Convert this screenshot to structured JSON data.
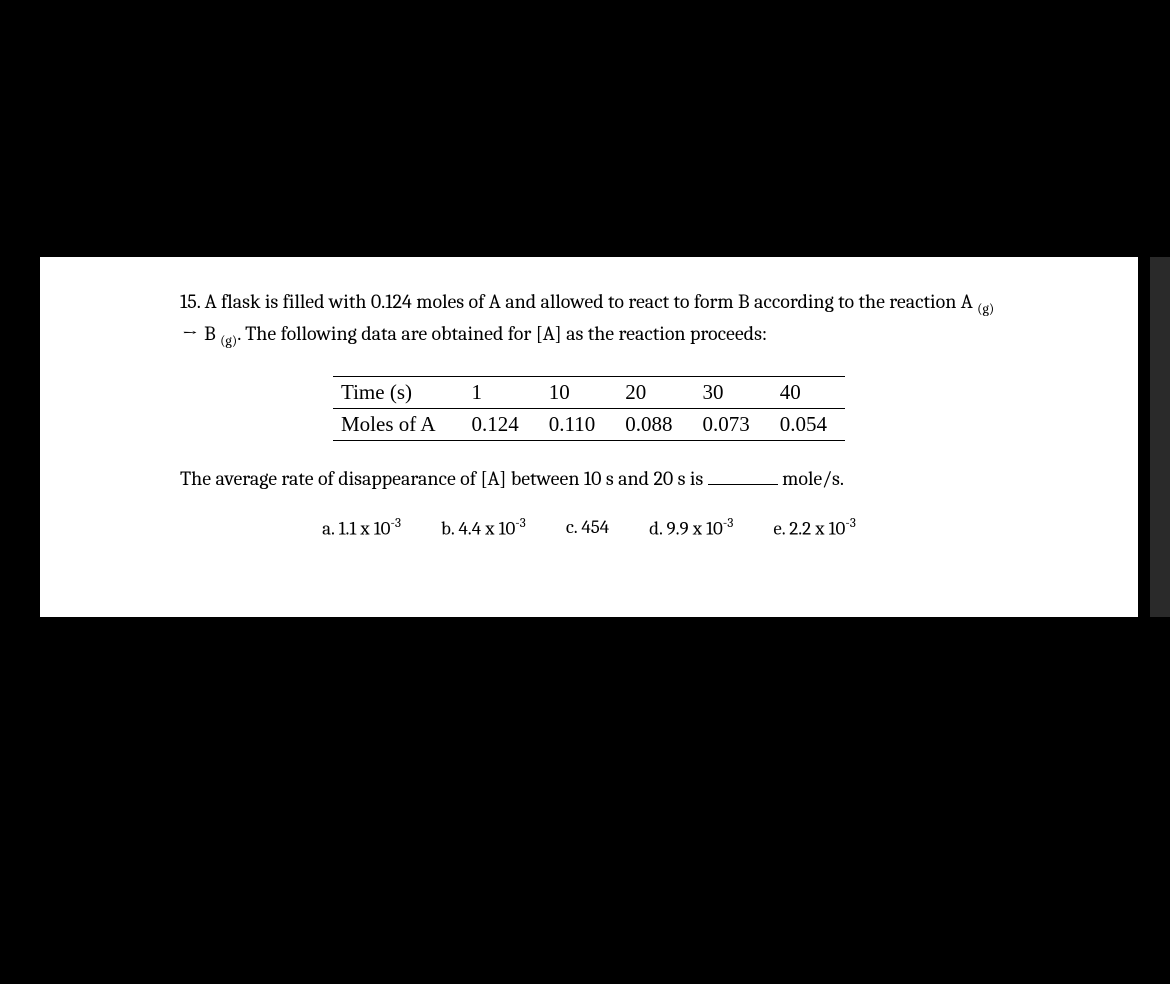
{
  "question": {
    "number": "15.",
    "text_part1": "A flask is filled with 0.124 moles of A and allowed to react to form B according to the reaction A",
    "sub1": "(g)",
    "arrow": "→",
    "text_part2": "B",
    "sub2": "(g)",
    "text_part3": ".  The following data are obtained for [A] as the reaction proceeds:"
  },
  "table": {
    "row1_label": "Time (s)",
    "row1_values": [
      "1",
      "10",
      "20",
      "30",
      "40"
    ],
    "row2_label": "Moles of A",
    "row2_values": [
      "0.124",
      "0.110",
      "0.088",
      "0.073",
      "0.054"
    ]
  },
  "followup": {
    "text_before": "The average rate of disappearance of [A] between 10 s and 20 s is",
    "text_after": "mole/s."
  },
  "choices": {
    "a": {
      "prefix": "a.",
      "base": "1.1 x 10",
      "exp": "-3"
    },
    "b": {
      "prefix": "b.",
      "base": "4.4 x 10",
      "exp": "-3"
    },
    "c": {
      "prefix": "c.",
      "base": "454",
      "exp": ""
    },
    "d": {
      "prefix": "d.",
      "base": "9.9 x 10",
      "exp": "-3"
    },
    "e": {
      "prefix": "e.",
      "base": "2.2 x 10",
      "exp": "-3"
    }
  }
}
